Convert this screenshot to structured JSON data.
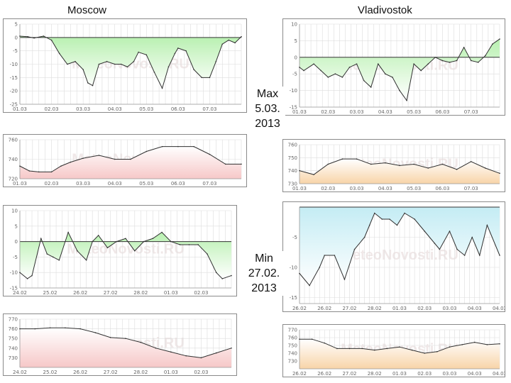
{
  "labels": {
    "left_city": "Moscow",
    "right_city": "Vladivostok",
    "max_line1": "Max",
    "max_line2": "5.03.",
    "max_line3": "2013",
    "min_line1": "Min",
    "min_line2": "27.02.",
    "min_line3": "2013"
  },
  "colors": {
    "temp_fill": "#b8f0b0",
    "temp_line": "#303030",
    "pressure_fill": "#f6c8c8",
    "cold_fill": "#c4ecf4",
    "orange_fill": "#f8d4a8",
    "grid": "#dddddd"
  },
  "chart_data": [
    {
      "name": "moscow-temp-max",
      "type": "area",
      "title": "Moscow",
      "watermark": "MeteoNovosti.RU",
      "ylim": [
        -25,
        5
      ],
      "yticks": [
        5,
        0,
        -5,
        -10,
        -15,
        -20,
        -25
      ],
      "baseline": 0,
      "fill": "green",
      "xlim": [
        0,
        7
      ],
      "xticks": [
        0,
        1,
        2,
        3,
        4,
        5,
        6
      ],
      "xticklabels": [
        "01.03",
        "02.03",
        "03.03",
        "04.03",
        "05.03",
        "06.03",
        "07.03"
      ],
      "x": [
        0,
        0.25,
        0.45,
        0.75,
        1,
        1.25,
        1.5,
        1.75,
        2,
        2.15,
        2.3,
        2.5,
        2.75,
        3,
        3.2,
        3.4,
        3.6,
        3.75,
        4,
        4.25,
        4.5,
        4.7,
        4.9,
        5,
        5.25,
        5.5,
        5.75,
        6,
        6.2,
        6.4,
        6.6,
        6.8,
        7
      ],
      "y": [
        0.5,
        0.3,
        -0.2,
        0.5,
        -1,
        -6,
        -10,
        -9,
        -12,
        -17,
        -18,
        -10,
        -9,
        -10,
        -10,
        -11,
        -9,
        -5.5,
        -6.5,
        -13,
        -19,
        -11,
        -6,
        -4,
        -5,
        -12,
        -15,
        -15,
        -9,
        -2.5,
        -1,
        -2,
        0.3
      ]
    },
    {
      "name": "moscow-pressure-max",
      "type": "area",
      "title": "",
      "watermark": "MeteoNovosti.RU",
      "ylim": [
        720,
        760
      ],
      "yticks": [
        760,
        740,
        720
      ],
      "baseline": 720,
      "fill": "red",
      "xlim": [
        0,
        7
      ],
      "xticks": [
        0,
        1,
        2,
        3,
        4,
        5,
        6
      ],
      "xticklabels": [
        "01.03",
        "02.03",
        "03.03",
        "04.03",
        "05.03",
        "06.03",
        "07.03"
      ],
      "x": [
        0,
        0.3,
        0.6,
        1,
        1.3,
        1.6,
        2,
        2.5,
        3,
        3.5,
        4,
        4.5,
        5,
        5.5,
        6,
        6.5,
        7
      ],
      "y": [
        733,
        728,
        727,
        727,
        733,
        737,
        741,
        744,
        740,
        740,
        748,
        753,
        753,
        753,
        745,
        735,
        735
      ]
    },
    {
      "name": "vladivostok-temp-max",
      "type": "area",
      "title": "Vladivostok",
      "watermark": "MeteoNovosti.RU",
      "ylim": [
        -15,
        10
      ],
      "yticks": [
        10,
        5,
        0,
        -5,
        -10,
        -15
      ],
      "baseline": 0,
      "fill": "green",
      "xlim": [
        0,
        7
      ],
      "xticks": [
        0,
        1,
        2,
        3,
        4,
        5,
        6
      ],
      "xticklabels": [
        "01.03",
        "02.03",
        "03.03",
        "04.03",
        "05.03",
        "06.03",
        "07.03"
      ],
      "x": [
        0,
        0.15,
        0.5,
        0.75,
        1,
        1.25,
        1.5,
        1.75,
        2,
        2.25,
        2.5,
        2.75,
        3,
        3.25,
        3.5,
        3.75,
        4,
        4.25,
        4.5,
        4.75,
        5,
        5.25,
        5.5,
        5.75,
        6,
        6.25,
        6.5,
        6.75,
        7
      ],
      "y": [
        -3,
        -4,
        -2,
        -4,
        -6,
        -5,
        -6,
        -3,
        -2,
        -7,
        -9,
        -2,
        -5,
        -6,
        -10,
        -13,
        -2,
        -4,
        -2,
        0,
        -1,
        -1.5,
        -1,
        3,
        -1,
        -1.5,
        0.5,
        4,
        5.5
      ]
    },
    {
      "name": "vladivostok-pressure-max",
      "type": "area",
      "title": "",
      "watermark": "MeteoNovosti.RU",
      "ylim": [
        730,
        760
      ],
      "yticks": [
        760,
        750,
        740,
        730
      ],
      "baseline": 730,
      "fill": "orange",
      "xlim": [
        0,
        7
      ],
      "xticks": [
        0,
        1,
        2,
        3,
        4,
        5,
        6
      ],
      "xticklabels": [
        "01.03",
        "02.03",
        "03.03",
        "04.03",
        "05.03",
        "06.03",
        "07.03"
      ],
      "x": [
        0,
        0.5,
        1,
        1.5,
        2,
        2.5,
        3,
        3.5,
        4,
        4.5,
        5,
        5.5,
        6,
        6.5,
        7
      ],
      "y": [
        740,
        737,
        745,
        749,
        749,
        745,
        746,
        744,
        745,
        742,
        745,
        741,
        747,
        742,
        738
      ]
    },
    {
      "name": "moscow-temp-min",
      "type": "area",
      "title": "Moscow",
      "watermark": "MeteoNovosti.RU",
      "ylim": [
        -15,
        10
      ],
      "yticks": [
        10,
        5,
        0,
        -5,
        -10,
        -15
      ],
      "baseline": 0,
      "fill": "green",
      "xlim": [
        0,
        7
      ],
      "xticks": [
        0,
        1,
        2,
        3,
        4,
        5,
        6
      ],
      "xticklabels": [
        "24.02",
        "25.02",
        "26.02",
        "27.02",
        "28.02",
        "01.03",
        "02.03"
      ],
      "x": [
        0,
        0.25,
        0.4,
        0.7,
        0.9,
        1.1,
        1.3,
        1.6,
        1.9,
        2.2,
        2.4,
        2.6,
        2.9,
        3.2,
        3.5,
        3.8,
        4.1,
        4.4,
        4.7,
        5,
        5.3,
        5.6,
        5.9,
        6.2,
        6.5,
        6.7,
        7
      ],
      "y": [
        -10,
        -12,
        -11,
        1,
        -4,
        -5,
        -6,
        3,
        -3,
        -6,
        0,
        2,
        -2,
        0,
        1,
        -3,
        0,
        1,
        3,
        0,
        -1,
        -1,
        -1,
        -4,
        -10,
        -12,
        -11
      ]
    },
    {
      "name": "moscow-pressure-min",
      "type": "area",
      "title": "",
      "watermark": "MeteoNovosti.RU",
      "ylim": [
        720,
        770
      ],
      "yticks": [
        770,
        760,
        750,
        740,
        730
      ],
      "baseline": 720,
      "fill": "red",
      "xlim": [
        0,
        7
      ],
      "xticks": [
        0,
        1,
        2,
        3,
        4,
        5,
        6
      ],
      "xticklabels": [
        "24.02",
        "25.02",
        "26.02",
        "27.02",
        "28.02",
        "01.03",
        "02.03"
      ],
      "x": [
        0,
        0.5,
        1,
        1.5,
        2,
        2.5,
        3,
        3.5,
        4,
        4.5,
        5,
        5.5,
        6,
        6.5,
        7
      ],
      "y": [
        760,
        760,
        761,
        761,
        760,
        756,
        751,
        750,
        746,
        740,
        736,
        732,
        730,
        735,
        740
      ]
    },
    {
      "name": "vladivostok-temp-min",
      "type": "area",
      "title": "Vladivostok",
      "watermark": "MeteoNovosti.RU",
      "ylim": [
        -16,
        0
      ],
      "yticks": [
        -5,
        -10,
        -15
      ],
      "baseline": 0,
      "fill": "blue",
      "xlim": [
        0,
        8
      ],
      "xticks": [
        0,
        1,
        2,
        3,
        4,
        5,
        6,
        7,
        8
      ],
      "xticklabels": [
        "26.02",
        "26.02",
        "27.02",
        "28.02",
        "01.03",
        "02.03",
        "03.03",
        "04.03",
        "04.03"
      ],
      "x": [
        0,
        0.4,
        0.8,
        1,
        1.4,
        1.8,
        2.2,
        2.6,
        2.8,
        3,
        3.3,
        3.6,
        3.9,
        4.2,
        4.6,
        5,
        5.4,
        5.6,
        6,
        6.3,
        6.6,
        6.9,
        7.2,
        7.5,
        8
      ],
      "y": [
        -11,
        -13,
        -10,
        -8,
        -8,
        -12,
        -7,
        -5,
        -3,
        -1,
        -2,
        -2,
        -3,
        -1,
        -2,
        -4,
        -6,
        -7,
        -4,
        -7,
        -8,
        -5,
        -8,
        -3,
        -8
      ]
    },
    {
      "name": "vladivostok-pressure-min",
      "type": "area",
      "title": "",
      "watermark": "MeteoNovosti.RU",
      "ylim": [
        720,
        770
      ],
      "yticks": [
        770,
        760,
        750,
        740,
        730
      ],
      "baseline": 720,
      "fill": "orange",
      "xlim": [
        0,
        8
      ],
      "xticks": [
        0,
        1,
        2,
        3,
        4,
        5,
        6,
        7,
        8
      ],
      "xticklabels": [
        "26.02",
        "26.02",
        "27.02",
        "28.02",
        "01.03",
        "02.03",
        "03.03",
        "04.03",
        "04.03"
      ],
      "x": [
        0,
        0.5,
        1,
        1.5,
        2,
        2.5,
        3,
        3.5,
        4,
        4.5,
        5,
        5.5,
        6,
        6.5,
        7,
        7.5,
        8
      ],
      "y": [
        758,
        758,
        753,
        746,
        746,
        746,
        744,
        746,
        748,
        744,
        740,
        742,
        748,
        751,
        754,
        751,
        752
      ]
    }
  ]
}
